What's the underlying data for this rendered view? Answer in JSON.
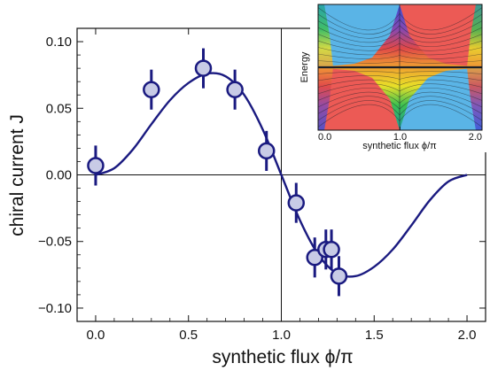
{
  "chart_data": [
    {
      "type": "scatter",
      "xlabel": "synthetic flux ϕ/π",
      "ylabel": "chiral current J",
      "xlim": [
        -0.1,
        2.1
      ],
      "ylim": [
        -0.11,
        0.11
      ],
      "xticks": [
        0.0,
        0.5,
        1.0,
        1.5,
        2.0
      ],
      "xtick_labels": [
        "0.0",
        "0.5",
        "1.0",
        "1.5",
        "2.0"
      ],
      "yticks": [
        -0.1,
        -0.05,
        0.0,
        0.05,
        0.1
      ],
      "ytick_labels": [
        "−0.10",
        "−0.05",
        "0.00",
        "0.05",
        "0.10"
      ],
      "reference_lines": {
        "horizontal_y": 0.0,
        "vertical_x": 1.0
      },
      "grid": false,
      "colors": {
        "marker_fill": "#c8cbe6",
        "marker_edge": "#1a1a80",
        "curve": "#1a1a80"
      },
      "series": [
        {
          "kind": "points_with_error_bars",
          "x": [
            0.0,
            0.3,
            0.58,
            0.75,
            0.92,
            1.08,
            1.18,
            1.24,
            1.27,
            1.31
          ],
          "y": [
            0.007,
            0.064,
            0.08,
            0.064,
            0.018,
            -0.021,
            -0.062,
            -0.056,
            -0.056,
            -0.076
          ],
          "y_err": [
            0.015,
            0.015,
            0.015,
            0.015,
            0.015,
            0.015,
            0.015,
            0.015,
            0.015,
            0.015
          ],
          "x_err": [
            0.04,
            0.04,
            0.04,
            0.0,
            0.0,
            0.0,
            0.04,
            0.0,
            0.04,
            0.0
          ]
        },
        {
          "kind": "theory_curve",
          "x": [
            0.0,
            0.1,
            0.2,
            0.3,
            0.4,
            0.5,
            0.6,
            0.7,
            0.8,
            0.9,
            1.0,
            1.1,
            1.2,
            1.3,
            1.4,
            1.5,
            1.6,
            1.7,
            1.8,
            1.9,
            2.0
          ],
          "y": [
            0.0,
            0.005,
            0.019,
            0.038,
            0.056,
            0.069,
            0.076,
            0.074,
            0.06,
            0.034,
            0.0,
            -0.034,
            -0.06,
            -0.074,
            -0.076,
            -0.069,
            -0.056,
            -0.038,
            -0.019,
            -0.005,
            0.0
          ]
        }
      ]
    },
    {
      "type": "heatmap",
      "description_role": "inset",
      "xlabel": "synthetic flux ϕ/π",
      "ylabel": "Energy",
      "xlim": [
        0.0,
        2.0
      ],
      "xtick_labels": [
        "0.0",
        "1.0",
        "2.0"
      ],
      "colors": {
        "blue": "#5ab4e6",
        "red": "#ec5a55",
        "dark_lines": "#1c2028",
        "orange": "#f0a030",
        "yellow": "#e8e028",
        "green": "#3cc050",
        "purple": "#8848b0"
      }
    }
  ]
}
